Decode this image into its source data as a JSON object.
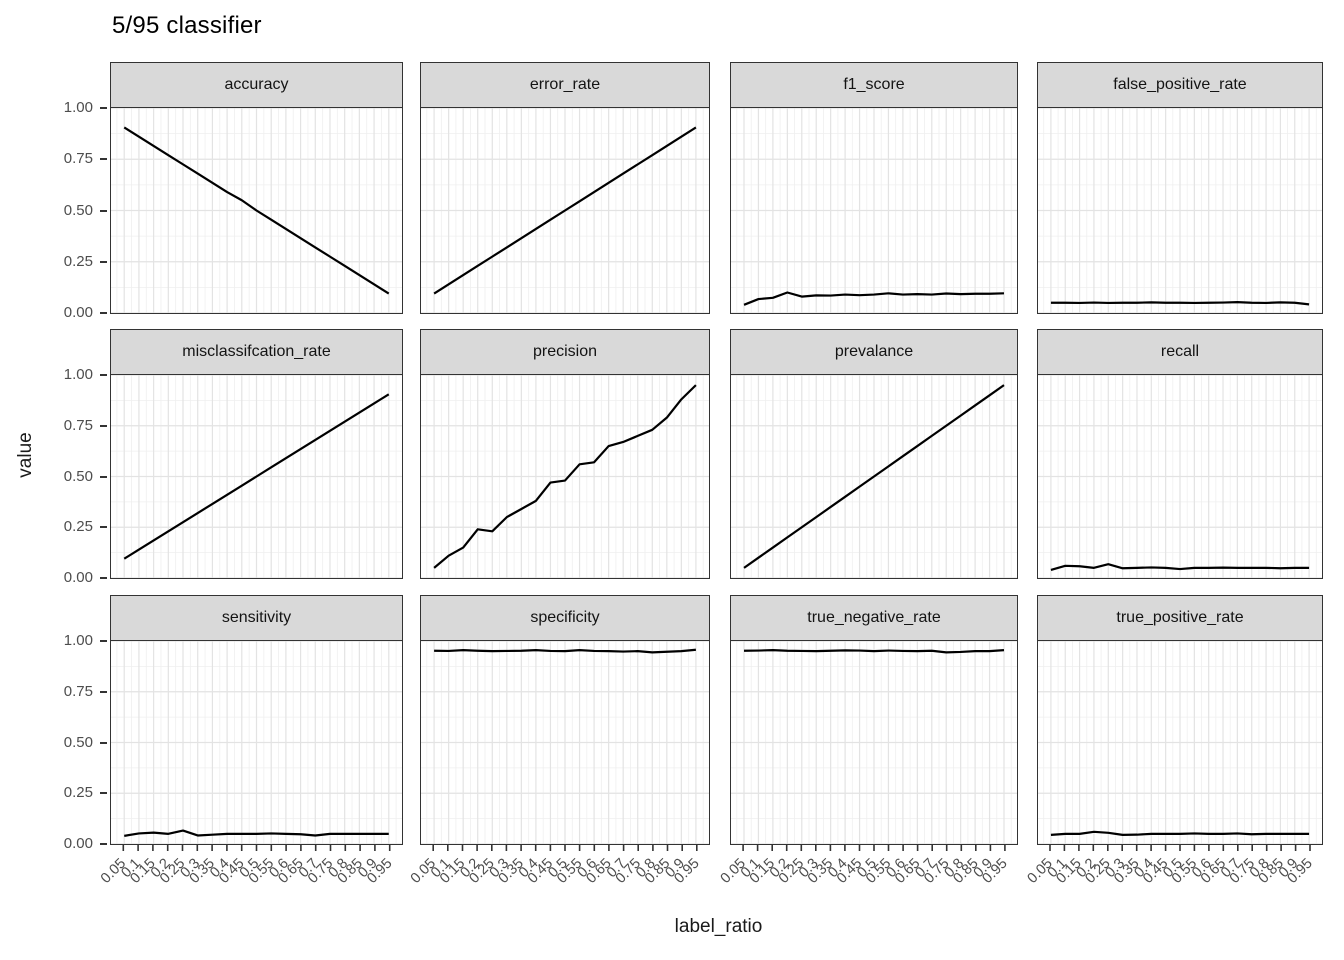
{
  "title": "5/95 classifier",
  "chart_data": {
    "type": "line",
    "title": "5/95 classifier",
    "xlabel": "label_ratio",
    "ylabel": "value",
    "legend": "none",
    "grid": "major+minor",
    "ylim": [
      0,
      1
    ],
    "xlim": [
      0.005,
      0.995
    ],
    "x": [
      0.05,
      0.1,
      0.15,
      0.2,
      0.25,
      0.3,
      0.35,
      0.4,
      0.45,
      0.5,
      0.55,
      0.6,
      0.65,
      0.7,
      0.75,
      0.8,
      0.85,
      0.9,
      0.95
    ],
    "x_tick_labels": [
      "0.05",
      "0.1",
      "0.15",
      "0.2",
      "0.25",
      "0.3",
      "0.35",
      "0.4",
      "0.45",
      "0.5",
      "0.55",
      "0.6",
      "0.65",
      "0.7",
      "0.75",
      "0.8",
      "0.85",
      "0.9",
      "0.95"
    ],
    "y_tick_labels": [
      "1.00",
      "0.75",
      "0.50",
      "0.25",
      "0.00"
    ],
    "y_major": [
      1.0,
      0.75,
      0.5,
      0.25,
      0.0
    ],
    "y_minor": [
      0.875,
      0.625,
      0.375,
      0.125
    ],
    "facets": [
      {
        "label": "accuracy",
        "values": [
          0.905,
          0.86,
          0.815,
          0.77,
          0.725,
          0.68,
          0.635,
          0.59,
          0.55,
          0.5,
          0.455,
          0.41,
          0.365,
          0.32,
          0.275,
          0.23,
          0.185,
          0.14,
          0.095
        ]
      },
      {
        "label": "error_rate",
        "values": [
          0.095,
          0.14,
          0.185,
          0.23,
          0.275,
          0.32,
          0.365,
          0.41,
          0.455,
          0.5,
          0.545,
          0.59,
          0.635,
          0.68,
          0.725,
          0.77,
          0.815,
          0.86,
          0.905
        ]
      },
      {
        "label": "f1_score",
        "values": [
          0.04,
          0.068,
          0.074,
          0.1,
          0.08,
          0.086,
          0.085,
          0.09,
          0.087,
          0.09,
          0.096,
          0.09,
          0.092,
          0.09,
          0.095,
          0.092,
          0.094,
          0.094,
          0.096
        ]
      },
      {
        "label": "false_positive_rate",
        "values": [
          0.05,
          0.05,
          0.049,
          0.051,
          0.049,
          0.05,
          0.05,
          0.052,
          0.05,
          0.05,
          0.049,
          0.05,
          0.051,
          0.053,
          0.05,
          0.049,
          0.052,
          0.05,
          0.042
        ]
      },
      {
        "label": "misclassifcation_rate",
        "values": [
          0.095,
          0.14,
          0.185,
          0.23,
          0.275,
          0.32,
          0.365,
          0.41,
          0.455,
          0.5,
          0.545,
          0.59,
          0.635,
          0.68,
          0.725,
          0.77,
          0.815,
          0.86,
          0.905
        ]
      },
      {
        "label": "precision",
        "values": [
          0.05,
          0.11,
          0.15,
          0.24,
          0.23,
          0.3,
          0.34,
          0.38,
          0.47,
          0.48,
          0.56,
          0.57,
          0.65,
          0.67,
          0.7,
          0.73,
          0.79,
          0.88,
          0.95
        ]
      },
      {
        "label": "prevalance",
        "values": [
          0.05,
          0.1,
          0.15,
          0.2,
          0.25,
          0.3,
          0.35,
          0.4,
          0.45,
          0.5,
          0.55,
          0.6,
          0.65,
          0.7,
          0.75,
          0.8,
          0.85,
          0.9,
          0.95
        ]
      },
      {
        "label": "recall",
        "values": [
          0.04,
          0.06,
          0.058,
          0.05,
          0.068,
          0.048,
          0.05,
          0.052,
          0.05,
          0.044,
          0.05,
          0.05,
          0.051,
          0.05,
          0.05,
          0.05,
          0.048,
          0.05,
          0.05
        ]
      },
      {
        "label": "sensitivity",
        "values": [
          0.04,
          0.052,
          0.056,
          0.05,
          0.066,
          0.042,
          0.046,
          0.05,
          0.05,
          0.05,
          0.052,
          0.05,
          0.048,
          0.042,
          0.05,
          0.05,
          0.05,
          0.05,
          0.05
        ]
      },
      {
        "label": "specificity",
        "values": [
          0.952,
          0.951,
          0.955,
          0.952,
          0.95,
          0.951,
          0.952,
          0.955,
          0.951,
          0.95,
          0.955,
          0.951,
          0.95,
          0.948,
          0.95,
          0.944,
          0.947,
          0.95,
          0.957
        ]
      },
      {
        "label": "true_negative_rate",
        "values": [
          0.952,
          0.953,
          0.955,
          0.952,
          0.951,
          0.95,
          0.952,
          0.954,
          0.953,
          0.95,
          0.953,
          0.951,
          0.95,
          0.952,
          0.944,
          0.946,
          0.95,
          0.95,
          0.955
        ]
      },
      {
        "label": "true_positive_rate",
        "values": [
          0.045,
          0.05,
          0.05,
          0.06,
          0.055,
          0.045,
          0.046,
          0.05,
          0.05,
          0.05,
          0.052,
          0.05,
          0.05,
          0.052,
          0.048,
          0.05,
          0.05,
          0.05,
          0.05
        ]
      }
    ],
    "colors": {
      "line": "#000000",
      "strip_fill": "#d9d9d9",
      "panel_border": "#333333",
      "grid_major": "#e3e3e3",
      "grid_minor": "#efefef",
      "axis_text": "#4d4d4d",
      "tick": "#333333",
      "text": "#1a1a1a"
    }
  }
}
